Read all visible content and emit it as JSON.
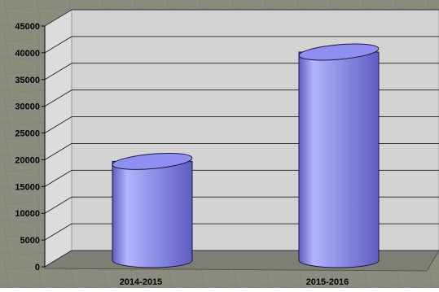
{
  "chart_data": {
    "type": "bar",
    "style": "3d-cylinder",
    "categories": [
      "2014-2015",
      "2015-2016"
    ],
    "series": [
      {
        "values": [
          19000,
          40000
        ]
      }
    ],
    "ylim": [
      0,
      45000
    ],
    "yticks": [
      "0",
      "5000",
      "10000",
      "15000",
      "20000",
      "25000",
      "30000",
      "35000",
      "40000",
      "45000"
    ],
    "title": "",
    "xlabel": "",
    "ylabel": "",
    "grid": true,
    "legend": "none",
    "colors": {
      "bar": "#8f8ff2",
      "bar_dark": "#5d5dc2",
      "bar_light": "#b3b3ff",
      "wall": "#d3d3d3",
      "side_wall": "#dcdcdc",
      "floor": "#7d7e74",
      "background": "#8b8c7e",
      "grid": "#333333",
      "text": "#000000"
    }
  }
}
